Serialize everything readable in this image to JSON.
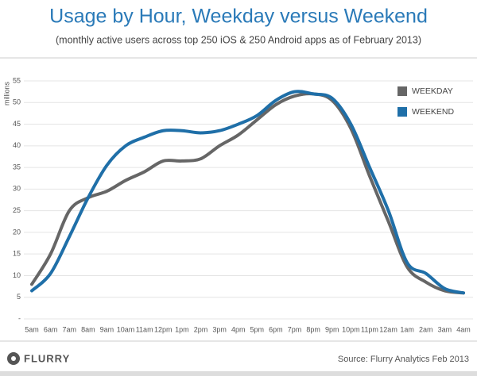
{
  "chart_data": {
    "type": "line",
    "title": "Usage by Hour, Weekday versus Weekend",
    "subtitle": "(monthly active users across top 250 iOS & 250 Android apps as of February 2013)",
    "y_label": "millions",
    "categories": [
      "5am",
      "6am",
      "7am",
      "8am",
      "9am",
      "10am",
      "11am",
      "12pm",
      "1pm",
      "2pm",
      "3pm",
      "4pm",
      "5pm",
      "6pm",
      "7pm",
      "8pm",
      "9pm",
      "10pm",
      "11pm",
      "12am",
      "1am",
      "2am",
      "3am",
      "4am"
    ],
    "series": [
      {
        "name": "WEEKDAY",
        "color": "#666666",
        "values": [
          8,
          15,
          25,
          28,
          29.5,
          32,
          34,
          36.5,
          36.5,
          37,
          40,
          42.5,
          46,
          49.5,
          51.5,
          52,
          50.5,
          44,
          33,
          22.5,
          12,
          8.5,
          6.5,
          6
        ]
      },
      {
        "name": "WEEKEND",
        "color": "#1f6fa8",
        "values": [
          6.5,
          10.5,
          19,
          28,
          35.5,
          40,
          42,
          43.5,
          43.5,
          43,
          43.5,
          45,
          47,
          50.5,
          52.5,
          52,
          51,
          45,
          35,
          25,
          13,
          10.5,
          7,
          6
        ]
      }
    ],
    "ylim": [
      0,
      55
    ],
    "yticks": [
      {
        "value": 0,
        "label": "-"
      },
      5,
      10,
      15,
      20,
      25,
      30,
      35,
      40,
      45,
      50,
      55
    ],
    "grid": true,
    "legend": "top-right",
    "logo": "FLURRY",
    "source": "Source: Flurry Analytics Feb 2013"
  }
}
